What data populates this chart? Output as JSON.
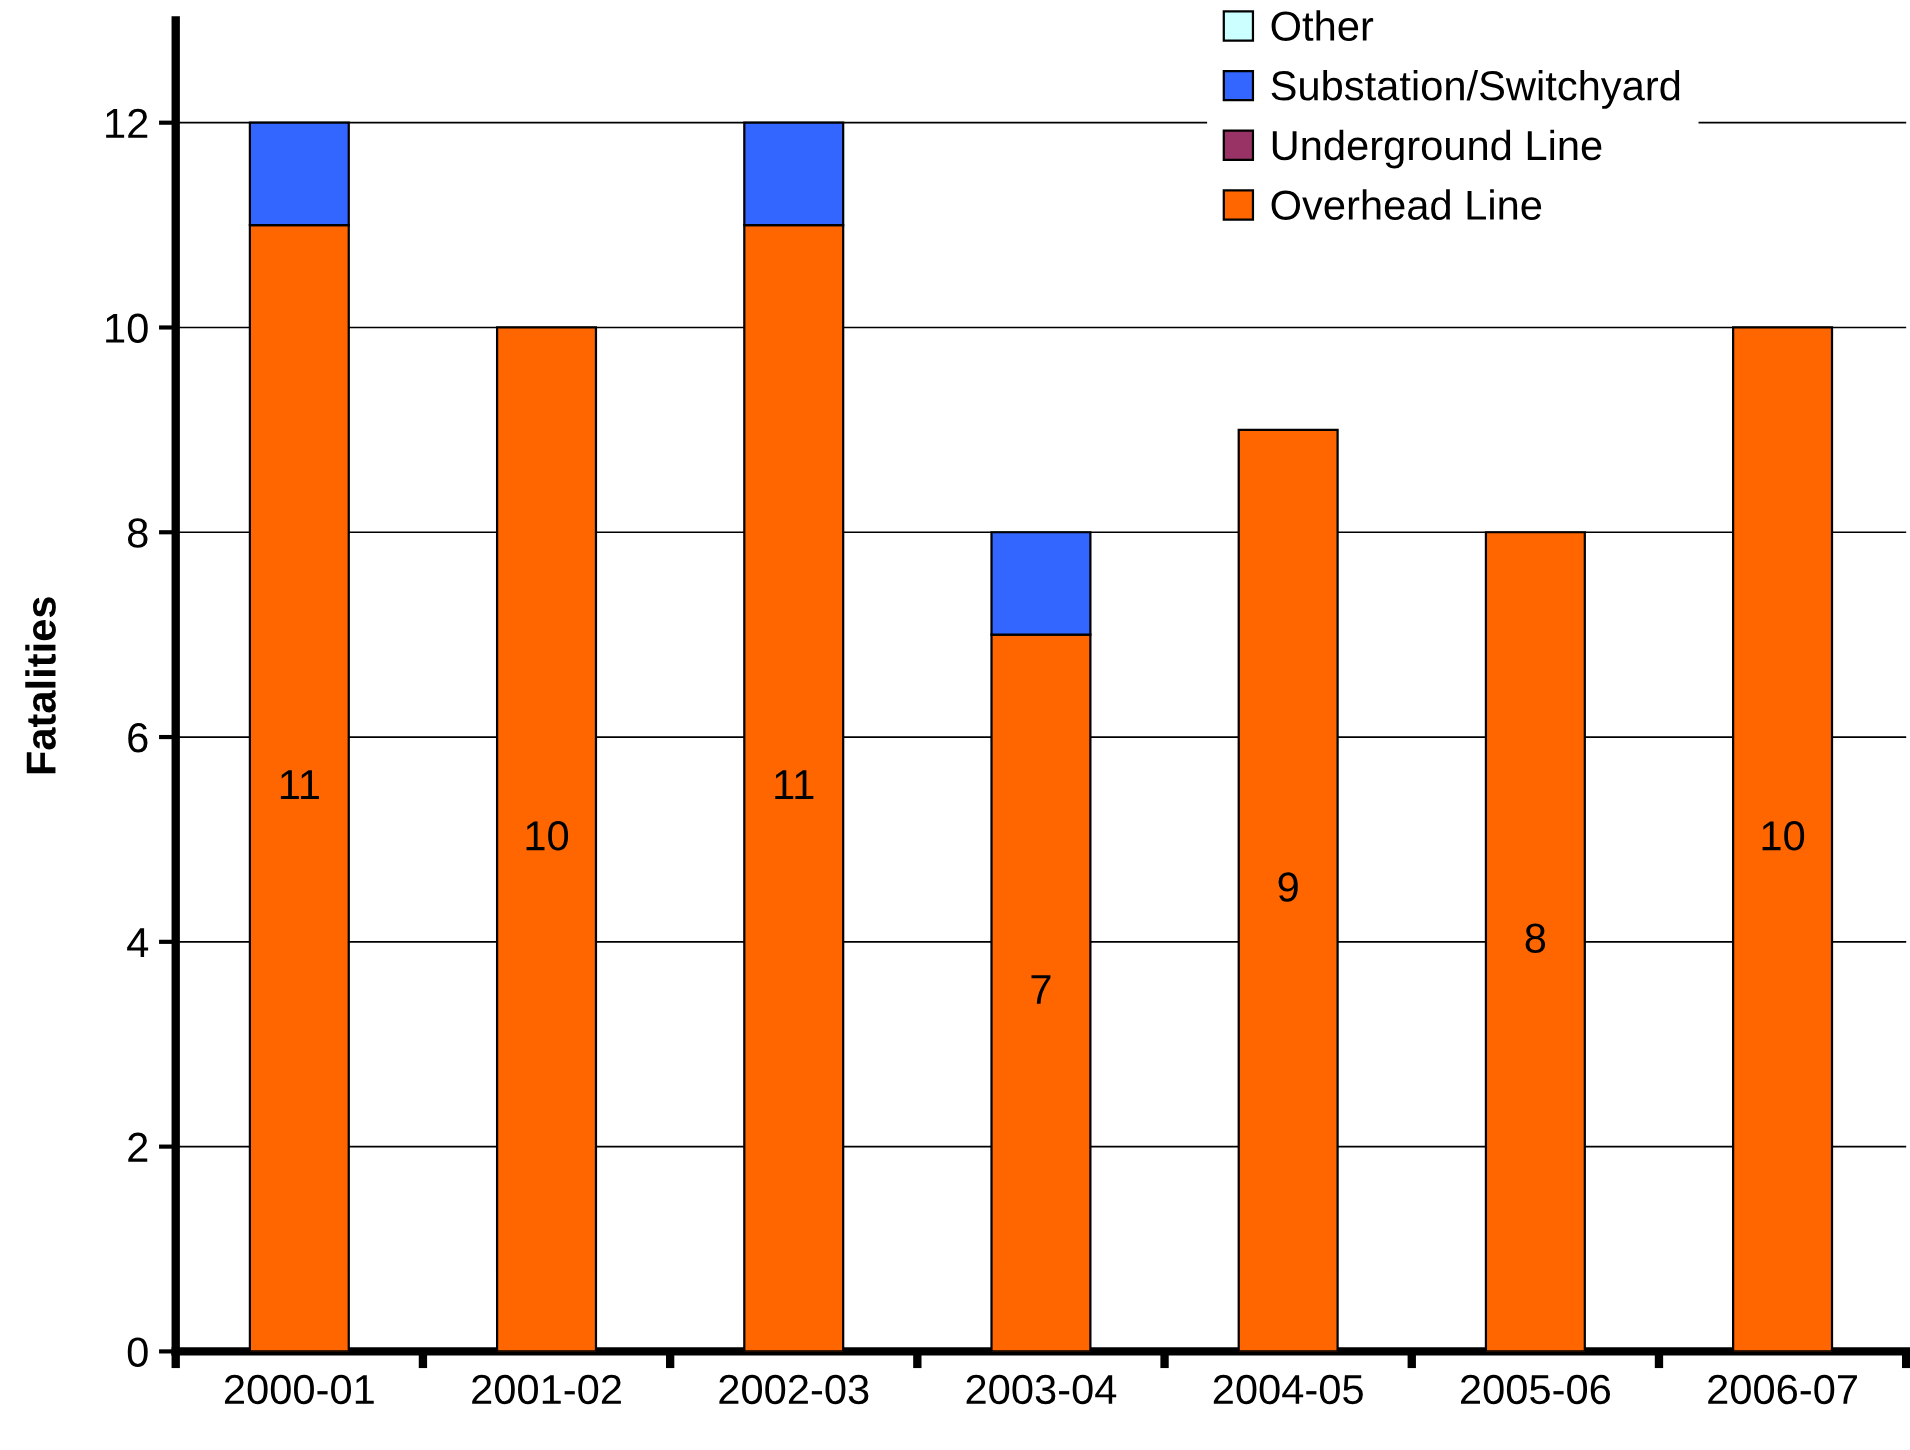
{
  "chart_data": {
    "type": "bar",
    "stacked": true,
    "ylabel": "Fatalities",
    "categories": [
      "2000-01",
      "2001-02",
      "2002-03",
      "2003-04",
      "2004-05",
      "2005-06",
      "2006-07"
    ],
    "series": [
      {
        "name": "Overhead Line",
        "color": "#ff6600",
        "values": [
          11,
          10,
          11,
          7,
          9,
          8,
          10
        ],
        "value_labels": [
          "11",
          "10",
          "11",
          "7",
          "9",
          "8",
          "10"
        ]
      },
      {
        "name": "Underground Line",
        "color": "#993366",
        "values": [
          0,
          0,
          0,
          0,
          0,
          0,
          0
        ]
      },
      {
        "name": "Substation/Switchyard",
        "color": "#3366ff",
        "values": [
          1,
          0,
          1,
          1,
          0,
          0,
          0
        ]
      },
      {
        "name": "Other",
        "color": "#ccffff",
        "values": [
          0,
          0,
          0,
          0,
          0,
          0,
          0
        ]
      }
    ],
    "ylim": [
      0,
      13
    ],
    "yticks": [
      0,
      2,
      4,
      6,
      8,
      10,
      12
    ],
    "grid": "y",
    "legend": "top right"
  }
}
